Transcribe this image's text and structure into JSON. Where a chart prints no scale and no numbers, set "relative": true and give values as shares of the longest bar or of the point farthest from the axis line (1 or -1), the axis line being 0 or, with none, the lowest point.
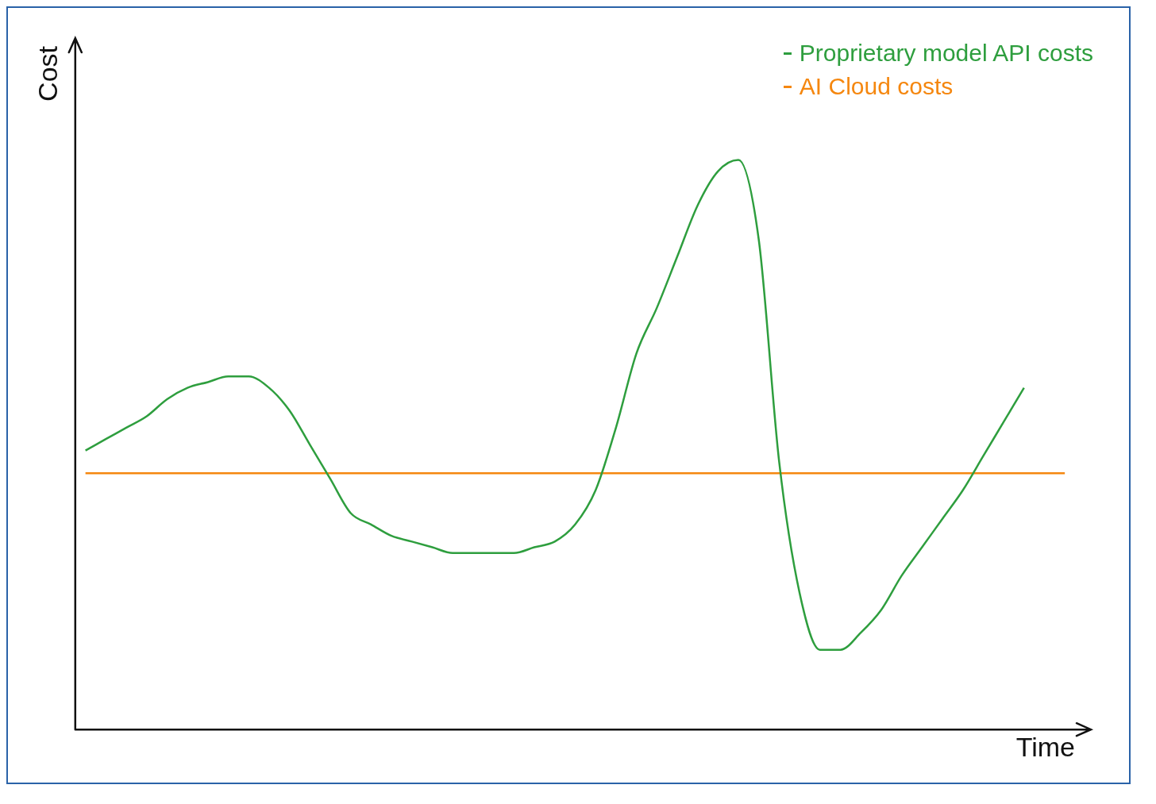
{
  "chart_data": {
    "type": "line",
    "relative": true,
    "xlabel": "Time",
    "ylabel": "Cost",
    "legend": "top right",
    "grid": false,
    "marker": "none",
    "line_style": "solid",
    "categories": [
      null,
      null,
      null,
      null,
      null,
      null,
      null,
      null,
      null,
      null,
      null,
      null,
      null,
      null,
      null,
      null,
      null,
      null,
      null,
      null,
      null,
      null,
      null,
      null,
      null,
      null,
      null,
      null,
      null,
      null,
      null,
      null,
      null,
      null,
      null,
      null,
      null,
      null,
      null,
      null,
      null,
      null,
      null,
      null,
      null,
      null,
      null,
      null,
      null
    ],
    "series": [
      {
        "name": "Proprietary model API costs",
        "color": "#2e9e3e",
        "values": [
          0.49,
          0.51,
          0.53,
          0.55,
          0.58,
          0.6,
          0.61,
          0.62,
          0.62,
          0.6,
          0.56,
          0.5,
          0.44,
          0.38,
          0.36,
          0.34,
          0.33,
          0.32,
          0.31,
          0.31,
          0.31,
          0.31,
          0.32,
          0.33,
          0.36,
          0.42,
          0.53,
          0.66,
          0.74,
          0.83,
          0.92,
          0.98,
          1.0,
          0.86,
          0.47,
          0.24,
          0.14,
          0.14,
          0.17,
          0.21,
          0.27,
          0.32,
          0.37,
          0.42,
          0.48,
          0.54,
          0.6,
          null,
          null
        ]
      },
      {
        "name": "AI Cloud costs",
        "color": "#f5870f",
        "values": [
          0.45,
          0.45,
          0.45,
          0.45,
          0.45,
          0.45,
          0.45,
          0.45,
          0.45,
          0.45,
          0.45,
          0.45,
          0.45,
          0.45,
          0.45,
          0.45,
          0.45,
          0.45,
          0.45,
          0.45,
          0.45,
          0.45,
          0.45,
          0.45,
          0.45,
          0.45,
          0.45,
          0.45,
          0.45,
          0.45,
          0.45,
          0.45,
          0.45,
          0.45,
          0.45,
          0.45,
          0.45,
          0.45,
          0.45,
          0.45,
          0.45,
          0.45,
          0.45,
          0.45,
          0.45,
          0.45,
          0.45,
          0.45,
          0.45
        ]
      }
    ]
  }
}
